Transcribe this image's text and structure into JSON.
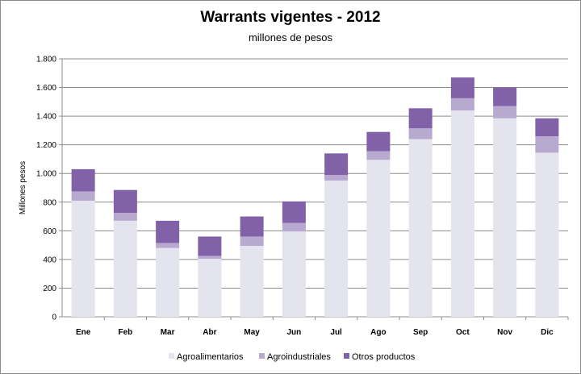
{
  "chart_data": {
    "type": "bar",
    "stacked": true,
    "title": "Warrants vigentes - 2012",
    "subtitle": "millones de pesos",
    "xlabel": "",
    "ylabel": "Millones pesos",
    "ylim": [
      0,
      1800
    ],
    "yticks": [
      0,
      200,
      400,
      600,
      800,
      1000,
      1200,
      1400,
      1600,
      1800
    ],
    "ytick_labels": [
      "0",
      "200",
      "400",
      "600",
      "800",
      "1.000",
      "1.200",
      "1.400",
      "1.600",
      "1.800"
    ],
    "grid": true,
    "legend_position": "bottom",
    "categories": [
      "Ene",
      "Feb",
      "Mar",
      "Abr",
      "May",
      "Jun",
      "Jul",
      "Ago",
      "Sep",
      "Oct",
      "Nov",
      "Dic"
    ],
    "series": [
      {
        "name": "Agroalimentarios",
        "color": "#e4e4ee",
        "values": [
          810,
          670,
          480,
          405,
          495,
          595,
          950,
          1095,
          1240,
          1440,
          1385,
          1145
        ]
      },
      {
        "name": "Agroindustriales",
        "color": "#b8a9d0",
        "values": [
          65,
          55,
          35,
          20,
          65,
          60,
          40,
          60,
          75,
          85,
          85,
          115
        ]
      },
      {
        "name": "Otros productos",
        "color": "#8162a8",
        "values": [
          155,
          160,
          155,
          135,
          140,
          150,
          150,
          135,
          140,
          145,
          130,
          125
        ]
      }
    ]
  }
}
